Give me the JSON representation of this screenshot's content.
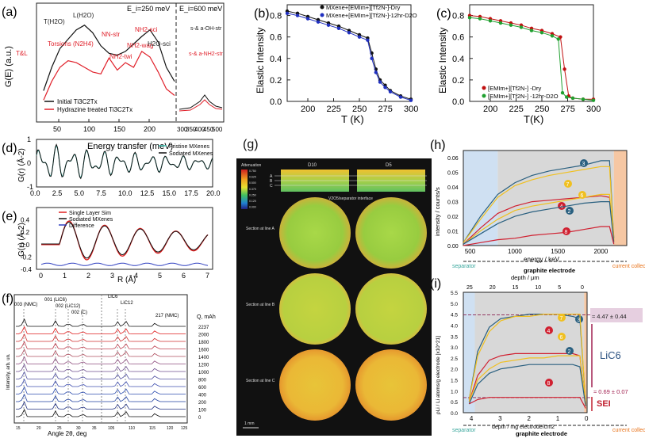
{
  "chart_data": [
    {
      "panel": "(a)",
      "type": "line",
      "title": "",
      "xlabel": "Energy transfer (meV)",
      "ylabel": "G(E) (a.u.)",
      "xlim": [
        0,
        650
      ],
      "xticks_left": [
        "50",
        "100",
        "150",
        "200"
      ],
      "xticks_right": [
        "300",
        "350",
        "400",
        "450",
        "500"
      ],
      "divider_labels": [
        "E_i=250 meV",
        "E_i=600 meV"
      ],
      "annotations": [
        "T(H2O)",
        "L(H2O)",
        "Torsions (N2H4)",
        "T&L",
        "NN-str",
        "NH2-twi",
        "NH2-sci",
        "NH2-wag",
        "H2O-sci",
        "s-& a-NH2-str",
        "s-& a-OH-str"
      ],
      "series": [
        {
          "name": "Initial Ti3C2Tx",
          "color": "#111111",
          "x": [
            10,
            25,
            40,
            55,
            70,
            85,
            100,
            115,
            130,
            145,
            160,
            175,
            190,
            205,
            220,
            235,
            250
          ],
          "values": [
            0.3,
            0.55,
            0.75,
            0.85,
            0.95,
            1.0,
            0.92,
            0.78,
            0.7,
            0.68,
            0.72,
            0.8,
            0.88,
            0.95,
            0.82,
            0.55,
            0.4
          ]
        },
        {
          "name": "Hydrazine treated Ti3C2Tx",
          "color": "#e0202a",
          "x": [
            10,
            25,
            40,
            55,
            70,
            85,
            100,
            115,
            130,
            145,
            160,
            175,
            190,
            205,
            220,
            235,
            250
          ],
          "values": [
            0.2,
            0.4,
            0.55,
            0.62,
            0.6,
            0.55,
            0.5,
            0.48,
            0.65,
            0.52,
            0.6,
            0.55,
            0.72,
            0.66,
            0.5,
            0.32,
            0.25
          ]
        }
      ]
    },
    {
      "panel": "(b)",
      "type": "line",
      "xlabel": "T (K)",
      "ylabel": "Elastic Intensity",
      "xlim": [
        180,
        300
      ],
      "ylim": [
        0,
        0.9
      ],
      "xticks": [
        "200",
        "225",
        "250",
        "275",
        "300"
      ],
      "yticks": [
        "0.0",
        "0.2",
        "0.4",
        "0.6",
        "0.8"
      ],
      "series": [
        {
          "name": "MXene+[EMIm+][Tf2N-]-Dry",
          "color": "#111111",
          "x": [
            180,
            190,
            200,
            210,
            220,
            230,
            240,
            250,
            258,
            262,
            266,
            270,
            275,
            280,
            290,
            300
          ],
          "values": [
            0.84,
            0.82,
            0.79,
            0.76,
            0.73,
            0.7,
            0.66,
            0.62,
            0.59,
            0.45,
            0.3,
            0.2,
            0.15,
            0.1,
            0.05,
            0.02
          ]
        },
        {
          "name": "MXene+[EMIm+][Tf2N-]-12hr-D2O",
          "color": "#2030c0",
          "x": [
            180,
            190,
            200,
            210,
            220,
            230,
            240,
            250,
            258,
            262,
            266,
            270,
            275,
            280,
            290,
            300
          ],
          "values": [
            0.82,
            0.8,
            0.77,
            0.74,
            0.71,
            0.68,
            0.64,
            0.6,
            0.57,
            0.4,
            0.27,
            0.18,
            0.13,
            0.09,
            0.04,
            0.01
          ]
        }
      ]
    },
    {
      "panel": "(c)",
      "type": "line",
      "xlabel": "T(K)",
      "ylabel": "Elastic Intensity",
      "xlim": [
        180,
        300
      ],
      "ylim": [
        0,
        0.9
      ],
      "xticks": [
        "200",
        "225",
        "250",
        "275",
        "300"
      ],
      "yticks": [
        "0.0",
        "0.2",
        "0.4",
        "0.6",
        "0.8"
      ],
      "series": [
        {
          "name": "[EMIm+][Tf2N-] -Dry",
          "color": "#c01010",
          "x": [
            180,
            190,
            200,
            210,
            220,
            230,
            240,
            250,
            260,
            268,
            272,
            276,
            280,
            290,
            300
          ],
          "values": [
            0.8,
            0.79,
            0.77,
            0.75,
            0.73,
            0.71,
            0.68,
            0.66,
            0.63,
            0.6,
            0.3,
            0.05,
            0.03,
            0.02,
            0.02
          ]
        },
        {
          "name": "[EMIm+][Tf2N-] -12hr-D2O",
          "color": "#20a030",
          "x": [
            180,
            190,
            200,
            210,
            220,
            230,
            240,
            250,
            260,
            266,
            270,
            274,
            280,
            290,
            300
          ],
          "values": [
            0.78,
            0.77,
            0.75,
            0.73,
            0.71,
            0.69,
            0.66,
            0.64,
            0.61,
            0.58,
            0.08,
            0.04,
            0.03,
            0.02,
            0.01
          ]
        }
      ]
    },
    {
      "panel": "(d)",
      "type": "line",
      "xlabel": "",
      "ylabel": "G(r) (Å-2)",
      "xlim": [
        0,
        20
      ],
      "ylim": [
        -1,
        1
      ],
      "xticks": [
        "0.0",
        "2.5",
        "5.0",
        "7.5",
        "10.0",
        "12.5",
        "15.0",
        "17.5",
        "20.0"
      ],
      "yticks": [
        "-1",
        "0",
        "1"
      ],
      "series": [
        {
          "name": "Pristine MXenes",
          "color": "#3cbfb0"
        },
        {
          "name": "Sodiated MXenes",
          "color": "#111111"
        }
      ]
    },
    {
      "panel": "(e)",
      "type": "line",
      "xlabel": "R (Å)",
      "ylabel": "G(r) (Å-2)",
      "xlim": [
        0,
        7
      ],
      "ylim": [
        -0.4,
        0.6
      ],
      "xticks": [
        "0",
        "1",
        "2",
        "3",
        "4",
        "5",
        "6",
        "7"
      ],
      "yticks": [
        "-0.4",
        "-0.2",
        "0.0",
        "0.2",
        "0.4"
      ],
      "series": [
        {
          "name": "Single Layer Sim",
          "color": "#e02020"
        },
        {
          "name": "Sodiated MXenes",
          "color": "#111111"
        },
        {
          "name": "Difference",
          "color": "#3040c0"
        }
      ]
    },
    {
      "panel": "(f)",
      "type": "line",
      "xlabel": "Angle 2θ, deg",
      "ylabel": "Intensity, arb. un.",
      "peak_labels": [
        "003 (NMC)",
        "001 (LiC6)",
        "002 (LiC12)",
        "002 (C)",
        "LiC6",
        "LiC12",
        "217 (NMC)"
      ],
      "legend_title": "Q, mAh",
      "capacities": [
        "2237",
        "2000",
        "1800",
        "1600",
        "1400",
        "1200",
        "1000",
        "800",
        "600",
        "400",
        "200",
        "100",
        "0"
      ],
      "xticks": [
        "15",
        "20",
        "25",
        "30",
        "35",
        "105",
        "110",
        "115",
        "120",
        "125"
      ]
    },
    {
      "panel": "(h)",
      "type": "line",
      "xlabel": "energy / keV",
      "ylabel": "intensity / counts/s",
      "xlim": [
        400,
        2300
      ],
      "ylim": [
        0,
        0.065
      ],
      "xticks": [
        "500",
        "1000",
        "1500",
        "2000"
      ],
      "yticks": [
        "0.00",
        "0.01",
        "0.02",
        "0.03",
        "0.04",
        "0.05",
        "0.06"
      ],
      "region_labels": [
        "separator",
        "graphite electrode",
        "current collector"
      ],
      "series": [
        {
          "name": "3",
          "color": "#2a6080",
          "x": [
            400,
            600,
            800,
            1000,
            1200,
            1400,
            1600,
            1800,
            2000,
            2100,
            2150
          ],
          "values": [
            0.002,
            0.02,
            0.035,
            0.043,
            0.048,
            0.051,
            0.053,
            0.055,
            0.058,
            0.058,
            0.005
          ]
        },
        {
          "name": "7",
          "color": "#f0c020",
          "x": [
            400,
            600,
            800,
            1000,
            1200,
            1400,
            1600,
            1800,
            2000,
            2100,
            2150
          ],
          "values": [
            0.002,
            0.018,
            0.033,
            0.041,
            0.045,
            0.048,
            0.05,
            0.052,
            0.054,
            0.054,
            0.004
          ]
        },
        {
          "name": "4",
          "color": "#d02030",
          "x": [
            400,
            600,
            800,
            1000,
            1200,
            1400,
            1600,
            1800,
            2000,
            2100,
            2150
          ],
          "values": [
            0.001,
            0.012,
            0.022,
            0.027,
            0.03,
            0.031,
            0.032,
            0.033,
            0.034,
            0.033,
            0.003
          ]
        },
        {
          "name": "6",
          "color": "#f0c020",
          "x": [
            400,
            600,
            800,
            1000,
            1200,
            1400,
            1600,
            1800,
            2000,
            2100,
            2150
          ],
          "values": [
            0.001,
            0.01,
            0.018,
            0.024,
            0.027,
            0.029,
            0.031,
            0.033,
            0.035,
            0.035,
            0.003
          ]
        },
        {
          "name": "2",
          "color": "#2a6080",
          "x": [
            400,
            600,
            800,
            1000,
            1200,
            1400,
            1600,
            1800,
            2000,
            2100,
            2150
          ],
          "values": [
            0.001,
            0.008,
            0.015,
            0.02,
            0.023,
            0.025,
            0.027,
            0.029,
            0.03,
            0.03,
            0.002
          ]
        },
        {
          "name": "8",
          "color": "#d02030",
          "x": [
            400,
            600,
            800,
            1000,
            1200,
            1400,
            1600,
            1800,
            2000,
            2100,
            2150
          ],
          "values": [
            0.0,
            0.002,
            0.004,
            0.005,
            0.007,
            0.008,
            0.009,
            0.011,
            0.013,
            0.013,
            0.001
          ]
        }
      ]
    },
    {
      "panel": "(i)",
      "type": "line",
      "xlabel": "depth / mg electrode/cm2",
      "ylabel": "ρLi / Li atoms/g electrode [x10^21]",
      "top_axis_label": "depth / μm",
      "top_ticks": [
        "25",
        "20",
        "15",
        "10",
        "5",
        "0"
      ],
      "xlim": [
        4.3,
        0
      ],
      "ylim": [
        0,
        5.5
      ],
      "xticks": [
        "4",
        "3",
        "2",
        "1",
        "0"
      ],
      "yticks": [
        "0.0",
        "0.5",
        "1.0",
        "1.5",
        "2.0",
        "2.5",
        "3.0",
        "3.5",
        "4.0",
        "4.5",
        "5.0",
        "5.5"
      ],
      "annotations": [
        "≈ 4.47 ± 0.44",
        "LiC6",
        "≈ 0.69 ± 0.07",
        "SEI"
      ],
      "region_labels": [
        "separator",
        "graphite electrode",
        "current collector"
      ],
      "series": [
        {
          "name": "3",
          "color": "#2a6080",
          "x": [
            4.1,
            3.8,
            3.4,
            3.0,
            2.5,
            2.0,
            1.5,
            1.0,
            0.5,
            0.25,
            0.05
          ],
          "values": [
            0.6,
            2.8,
            3.9,
            4.3,
            4.4,
            4.5,
            4.5,
            4.5,
            4.4,
            4.3,
            0.4
          ]
        },
        {
          "name": "7",
          "color": "#f0c020",
          "x": [
            4.1,
            3.8,
            3.4,
            3.0,
            2.5,
            2.0,
            1.5,
            1.0,
            0.5,
            0.25,
            0.05
          ],
          "values": [
            0.6,
            2.6,
            3.7,
            4.2,
            4.4,
            4.4,
            4.5,
            4.5,
            4.5,
            4.5,
            0.4
          ]
        },
        {
          "name": "4",
          "color": "#d02030",
          "x": [
            4.1,
            3.8,
            3.4,
            3.0,
            2.5,
            2.0,
            1.5,
            1.0,
            0.5,
            0.25,
            0.05
          ],
          "values": [
            0.5,
            1.7,
            2.4,
            2.6,
            2.7,
            2.7,
            2.7,
            2.7,
            2.7,
            2.6,
            0.3
          ]
        },
        {
          "name": "6",
          "color": "#f0c020",
          "x": [
            4.1,
            3.8,
            3.4,
            3.0,
            2.5,
            2.0,
            1.5,
            1.0,
            0.5,
            0.25,
            0.05
          ],
          "values": [
            0.5,
            1.5,
            2.0,
            2.3,
            2.4,
            2.5,
            2.5,
            2.6,
            2.6,
            2.6,
            0.3
          ]
        },
        {
          "name": "2",
          "color": "#2a6080",
          "x": [
            4.1,
            3.8,
            3.4,
            3.0,
            2.5,
            2.0,
            1.5,
            1.0,
            0.5,
            0.25,
            0.05
          ],
          "values": [
            0.4,
            1.3,
            1.8,
            2.0,
            2.1,
            2.2,
            2.2,
            2.2,
            2.2,
            2.1,
            0.3
          ]
        },
        {
          "name": "8",
          "color": "#d02030",
          "x": [
            4.1,
            3.8,
            3.4,
            3.0,
            2.5,
            2.0,
            1.5,
            1.0,
            0.5,
            0.25,
            0.05
          ],
          "values": [
            0.4,
            0.6,
            0.7,
            0.7,
            0.7,
            0.7,
            0.7,
            0.7,
            0.7,
            0.7,
            0.2
          ]
        }
      ]
    }
  ],
  "panel_g": {
    "label": "(g)",
    "colorbar_title": "Attenuation",
    "colorbar_ticks": [
      "0.750",
      "0.625",
      "0.500",
      "0.375",
      "0.250",
      "0.125",
      "0.000"
    ],
    "column_titles": [
      "D10",
      "D5"
    ],
    "line_labels": [
      "A",
      "B",
      "C"
    ],
    "interface_label": "V2O5/separator interface",
    "section_labels": [
      "Section at line A",
      "Section at line B",
      "Section at line C"
    ],
    "scale_label": "1 mm"
  },
  "colors": {
    "blue_region": "#cfe0f2",
    "orange_region": "#f6c7a3",
    "gray_region": "#d8d8d8",
    "separator": "#3aa79d",
    "collector": "#e8731a"
  }
}
